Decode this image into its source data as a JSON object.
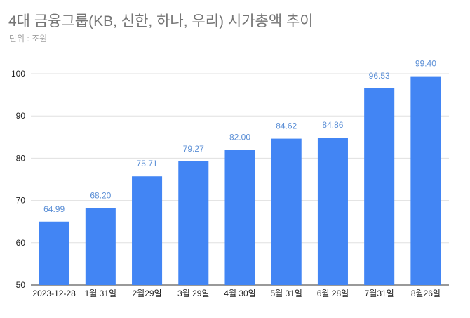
{
  "chart_data": {
    "type": "bar",
    "title": "4대 금융그룹(KB, 신한, 하나, 우리) 시가총액 추이",
    "subtitle": "단위 : 조원",
    "categories": [
      "2023-12-28",
      "1월 31일",
      "2월29일",
      "3월 29일",
      "4월 30일",
      "5월 31일",
      "6월 28일",
      "7월31일",
      "8월26일"
    ],
    "values": [
      64.99,
      68.2,
      75.71,
      79.27,
      82.0,
      84.62,
      84.86,
      96.53,
      99.4
    ],
    "value_labels": [
      "64.99",
      "68.20",
      "75.71",
      "79.27",
      "82.00",
      "84.62",
      "84.86",
      "96.53",
      "99.40"
    ],
    "ylim": [
      50,
      100
    ],
    "yticks": [
      50,
      60,
      70,
      80,
      90,
      100
    ],
    "grid": true,
    "legend": "none",
    "bar_color": "#4285f4",
    "label_color": "#5b8fd6",
    "grid_color": "#e0e0e0"
  }
}
